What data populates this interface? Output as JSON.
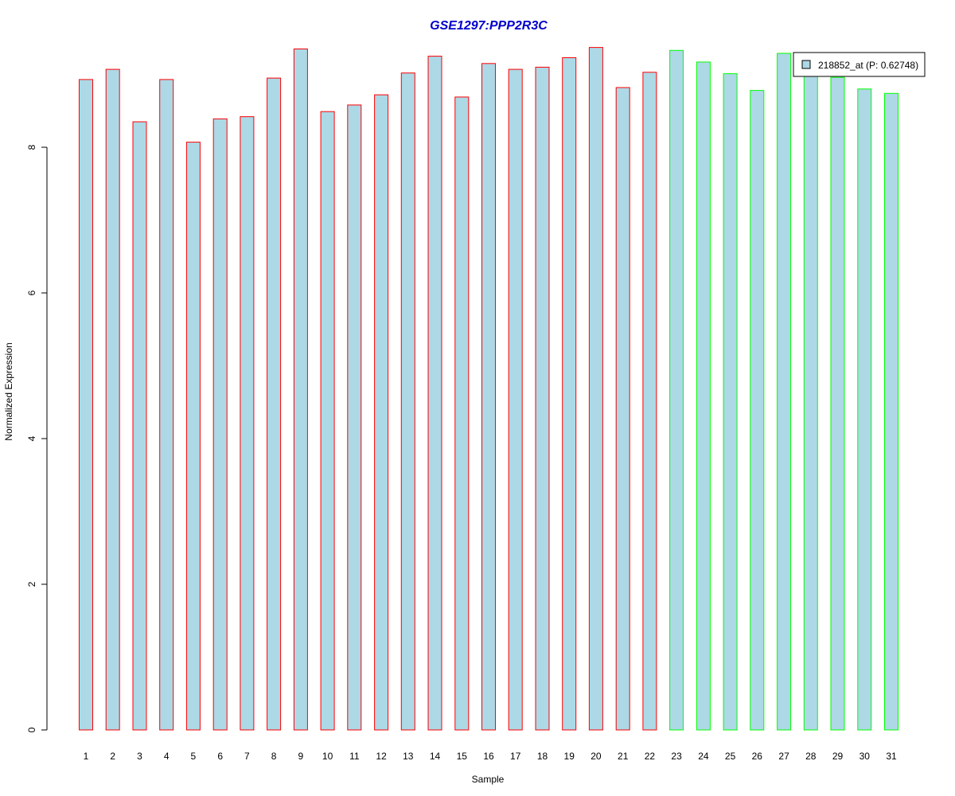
{
  "chart_data": {
    "type": "bar",
    "title": "GSE1297:PPP2R3C",
    "xlabel": "Sample",
    "ylabel": "Normalized Expression",
    "ylim": [
      0,
      9.35
    ],
    "yticks": [
      0,
      2,
      4,
      6,
      8
    ],
    "categories": [
      "1",
      "2",
      "3",
      "4",
      "5",
      "6",
      "7",
      "8",
      "9",
      "10",
      "11",
      "12",
      "13",
      "14",
      "15",
      "16",
      "17",
      "18",
      "19",
      "20",
      "21",
      "22",
      "23",
      "24",
      "25",
      "26",
      "27",
      "28",
      "29",
      "30",
      "31"
    ],
    "series": [
      {
        "name": "218852_at (P: 0.62748)",
        "values": [
          8.93,
          9.07,
          8.35,
          8.93,
          8.07,
          8.39,
          8.42,
          8.95,
          9.35,
          8.49,
          8.58,
          8.72,
          9.02,
          9.25,
          8.69,
          9.15,
          9.07,
          9.1,
          9.23,
          9.37,
          8.82,
          9.03,
          9.33,
          9.17,
          9.01,
          8.78,
          9.29,
          9.07,
          8.96,
          8.8,
          8.74
        ]
      }
    ],
    "groups": [
      "1",
      "1",
      "1",
      "1",
      "1",
      "1",
      "1",
      "1",
      "1",
      "1",
      "1",
      "1",
      "1",
      "1",
      "1",
      "1",
      "1",
      "1",
      "1",
      "1",
      "1",
      "1",
      "2",
      "2",
      "2",
      "2",
      "2",
      "2",
      "2",
      "2",
      "2"
    ],
    "colors": {
      "fill": "#add8e6",
      "group1_border": "#ff0000",
      "group2_border": "#00ff00",
      "title": "#0000cd"
    },
    "legend": {
      "position": "top-right",
      "label": "218852_at (P: 0.62748)"
    },
    "grid": false
  }
}
